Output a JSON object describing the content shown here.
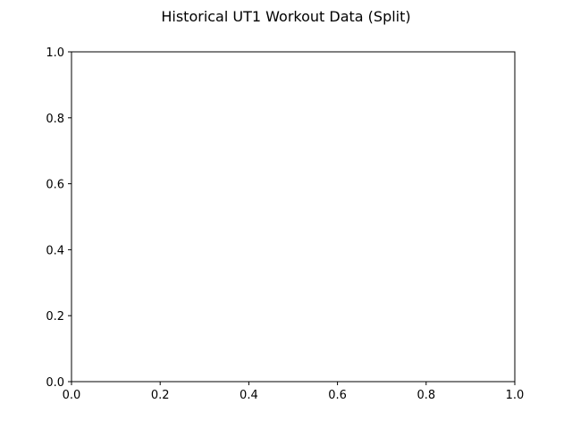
{
  "chart_data": {
    "type": "line",
    "title": "Historical UT1 Workout Data (Split)",
    "xlabel": "",
    "ylabel": "",
    "xlim": [
      0.0,
      1.0
    ],
    "ylim": [
      0.0,
      1.0
    ],
    "x_ticks": [
      "0.0",
      "0.2",
      "0.4",
      "0.6",
      "0.8",
      "1.0"
    ],
    "y_ticks": [
      "0.0",
      "0.2",
      "0.4",
      "0.6",
      "0.8",
      "1.0"
    ],
    "series": [],
    "grid": false,
    "legend": "none"
  }
}
